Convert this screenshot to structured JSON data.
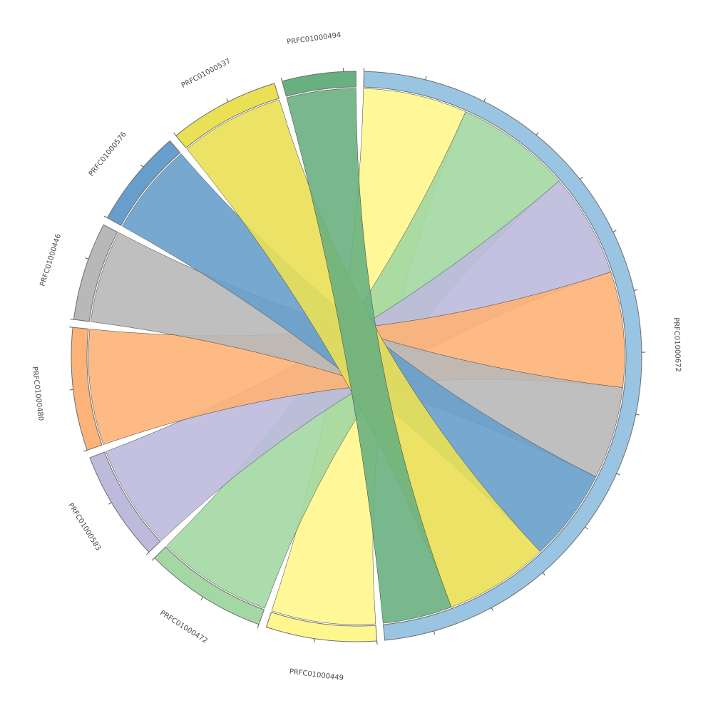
{
  "chart_data": {
    "type": "chord",
    "groups": [
      {
        "name": "PRFC01000672",
        "color": "#99c5e2"
      },
      {
        "name": "PRFC01000449",
        "color": "#fff68d"
      },
      {
        "name": "PRFC01000472",
        "color": "#a3d7a3"
      },
      {
        "name": "PRFC01000583",
        "color": "#bdbadb"
      },
      {
        "name": "PRFC01000480",
        "color": "#fdb277"
      },
      {
        "name": "PRFC01000446",
        "color": "#b8b8b8"
      },
      {
        "name": "PRFC01000576",
        "color": "#679ecb"
      },
      {
        "name": "PRFC01000537",
        "color": "#eae055"
      },
      {
        "name": "PRFC01000494",
        "color": "#69b080"
      }
    ],
    "matrix": [
      [
        0,
        9,
        10,
        9,
        10,
        8,
        8,
        9,
        6
      ],
      [
        9,
        0,
        0,
        0,
        0,
        0,
        0,
        0,
        0
      ],
      [
        10,
        0,
        0,
        0,
        0,
        0,
        0,
        0,
        0
      ],
      [
        9,
        0,
        0,
        0,
        0,
        0,
        0,
        0,
        0
      ],
      [
        10,
        0,
        0,
        0,
        0,
        0,
        0,
        0,
        0
      ],
      [
        8,
        0,
        0,
        0,
        0,
        0,
        0,
        0,
        0
      ],
      [
        8,
        0,
        0,
        0,
        0,
        0,
        0,
        0,
        0
      ],
      [
        9,
        0,
        0,
        0,
        0,
        0,
        0,
        0,
        0
      ],
      [
        6,
        0,
        0,
        0,
        0,
        0,
        0,
        0,
        0
      ]
    ],
    "ribbon_color_by": "source_group_partner",
    "legend": "none",
    "title": ""
  }
}
